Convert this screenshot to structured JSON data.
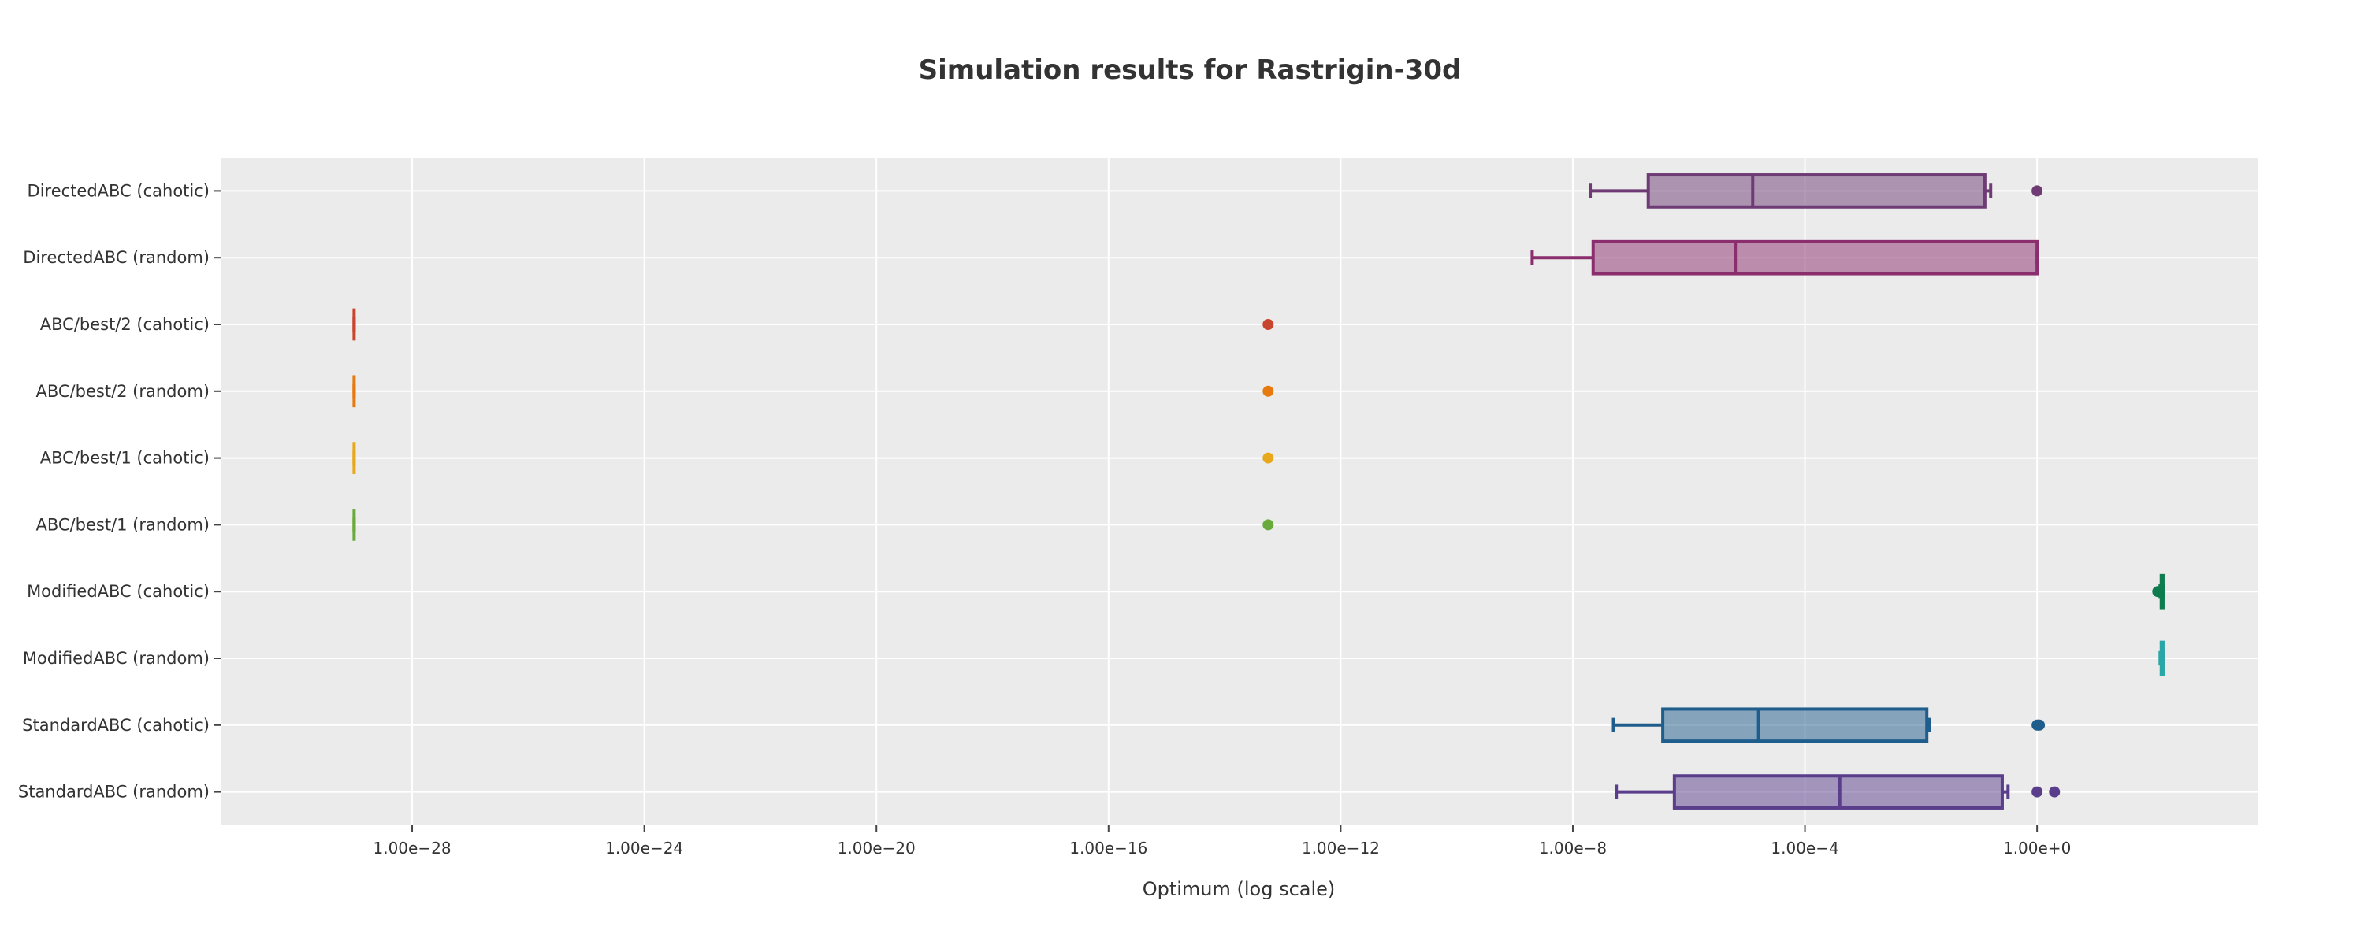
{
  "chart_data": {
    "type": "box",
    "orientation": "horizontal",
    "title": "Simulation results for Rastrigin-30d",
    "xlabel": "Optimum (log scale)",
    "ylabel": "",
    "xscale": "log10",
    "xlim_log10": [
      -31.3,
      3.8
    ],
    "x_ticks": [
      "1.00e−28",
      "1.00e−24",
      "1.00e−20",
      "1.00e−16",
      "1.00e−12",
      "1.00e−8",
      "1.00e−4",
      "1.00e+0"
    ],
    "x_tick_log10": [
      -28,
      -24,
      -20,
      -16,
      -12,
      -8,
      -4,
      0
    ],
    "grid": true,
    "legend": "none",
    "plot_bg": "#ebebeb",
    "series": [
      {
        "name": "DirectedABC (cahotic)",
        "color": "#6e3b75",
        "min_log10": -7.7,
        "q1_log10": -6.7,
        "median_log10": -4.9,
        "q3_log10": -0.9,
        "max_log10": -0.8,
        "outliers_log10": [
          0.0
        ]
      },
      {
        "name": "DirectedABC (random)",
        "color": "#8b2e6d",
        "min_log10": -8.7,
        "q1_log10": -7.65,
        "median_log10": -5.2,
        "q3_log10": 0.0,
        "max_log10": 0.0,
        "outliers_log10": []
      },
      {
        "name": "ABC/best/2 (cahotic)",
        "color": "#c8452e",
        "min_log10": -29.0,
        "q1_log10": -29.0,
        "median_log10": -29.0,
        "q3_log10": -29.0,
        "max_log10": -29.0,
        "outliers_log10": [
          -13.25
        ]
      },
      {
        "name": "ABC/best/2 (random)",
        "color": "#e67a10",
        "min_log10": -29.0,
        "q1_log10": -29.0,
        "median_log10": -29.0,
        "q3_log10": -29.0,
        "max_log10": -29.0,
        "outliers_log10": [
          -13.25
        ]
      },
      {
        "name": "ABC/best/1 (cahotic)",
        "color": "#e8a81e",
        "min_log10": -29.0,
        "q1_log10": -29.0,
        "median_log10": -29.0,
        "q3_log10": -29.0,
        "max_log10": -29.0,
        "outliers_log10": [
          -13.25
        ]
      },
      {
        "name": "ABC/best/1 (random)",
        "color": "#6aaa3c",
        "min_log10": -29.0,
        "q1_log10": -29.0,
        "median_log10": -29.0,
        "q3_log10": -29.0,
        "max_log10": -29.0,
        "outliers_log10": [
          -13.25
        ]
      },
      {
        "name": "ModifiedABC (cahotic)",
        "color": "#0e7c4f",
        "min_log10": 2.12,
        "q1_log10": 2.14,
        "median_log10": 2.15,
        "q3_log10": 2.17,
        "max_log10": 2.18,
        "outliers_log10": [
          2.08,
          2.1
        ]
      },
      {
        "name": "ModifiedABC (random)",
        "color": "#2aa6a6",
        "min_log10": 2.12,
        "q1_log10": 2.14,
        "median_log10": 2.155,
        "q3_log10": 2.17,
        "max_log10": 2.18,
        "outliers_log10": []
      },
      {
        "name": "StandardABC (cahotic)",
        "color": "#1f5e8c",
        "min_log10": -7.3,
        "q1_log10": -6.45,
        "median_log10": -4.8,
        "q3_log10": -1.9,
        "max_log10": -1.85,
        "outliers_log10": [
          0.0,
          0.02,
          0.04
        ]
      },
      {
        "name": "StandardABC (random)",
        "color": "#5a3e8c",
        "min_log10": -7.25,
        "q1_log10": -6.25,
        "median_log10": -3.4,
        "q3_log10": -0.6,
        "max_log10": -0.5,
        "outliers_log10": [
          0.0,
          0.3
        ]
      }
    ]
  }
}
